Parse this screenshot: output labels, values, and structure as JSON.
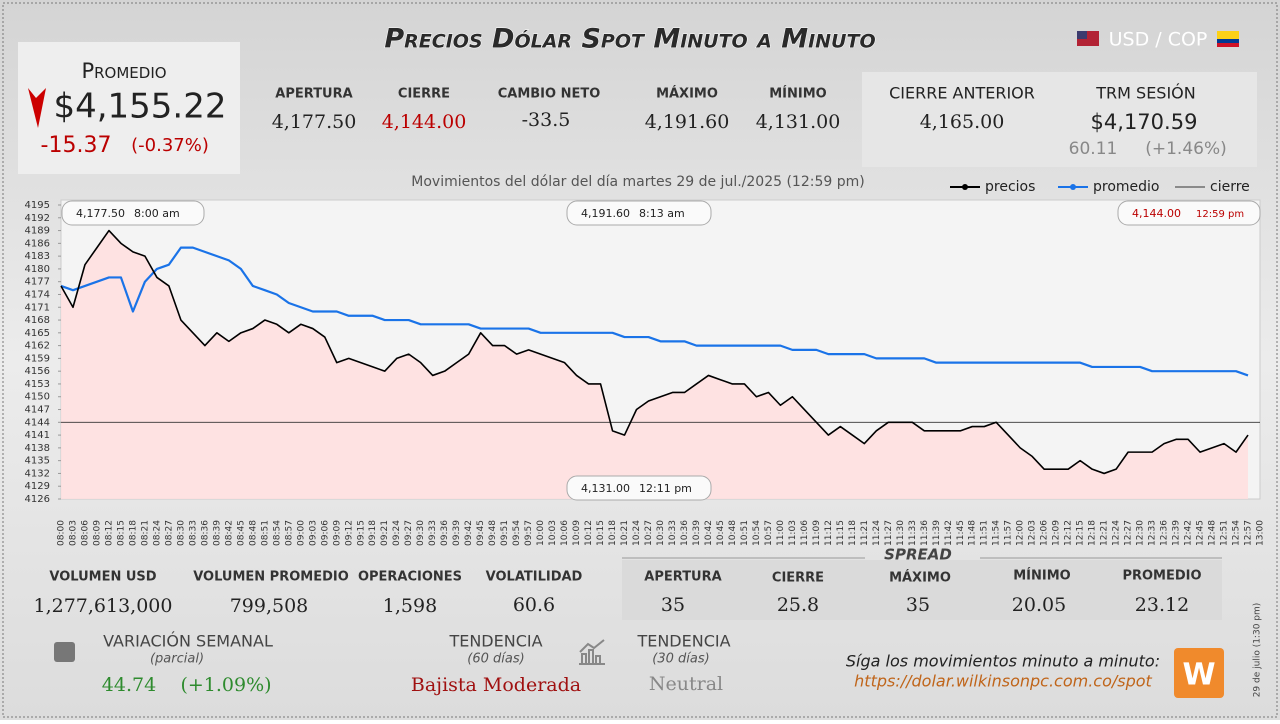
{
  "header": {
    "title": "Precios Dólar Spot Minuto a Minuto",
    "pair": "USD / COP"
  },
  "average": {
    "label": "Promedio",
    "value": "$4,155.22",
    "change": "-15.37",
    "change_pct": "(-0.37%)"
  },
  "session": [
    {
      "label": "APERTURA",
      "value": "4,177.50"
    },
    {
      "label": "CIERRE",
      "value": "4,144.00"
    },
    {
      "label": "CAMBIO NETO",
      "value": "-33.5"
    },
    {
      "label": "MÁXIMO",
      "value": "4,191.60"
    },
    {
      "label": "MÍNIMO",
      "value": "4,131.00"
    }
  ],
  "previous": {
    "label": "CIERRE ANTERIOR",
    "value": "4,165.00"
  },
  "trm": {
    "label": "TRM SESIÓN",
    "value": "$4,170.59",
    "change": "60.11",
    "change_pct": "(+1.46%)"
  },
  "chart_data": {
    "type": "line",
    "subtitle": "Movimientos del dólar del día martes 29 de jul./2025 (12:59 pm)",
    "categories": [
      "08:00",
      "08:03",
      "08:06",
      "08:09",
      "08:12",
      "08:15",
      "08:18",
      "08:21",
      "08:24",
      "08:27",
      "08:30",
      "08:33",
      "08:36",
      "08:39",
      "08:42",
      "08:45",
      "08:48",
      "08:51",
      "08:54",
      "08:57",
      "09:00",
      "09:03",
      "09:06",
      "09:09",
      "09:12",
      "09:15",
      "09:18",
      "09:21",
      "09:24",
      "09:27",
      "09:30",
      "09:33",
      "09:36",
      "09:39",
      "09:42",
      "09:45",
      "09:48",
      "09:51",
      "09:54",
      "09:57",
      "10:00",
      "10:03",
      "10:06",
      "10:09",
      "10:12",
      "10:15",
      "10:18",
      "10:21",
      "10:24",
      "10:27",
      "10:30",
      "10:33",
      "10:36",
      "10:39",
      "10:42",
      "10:45",
      "10:48",
      "10:51",
      "10:54",
      "10:57",
      "11:00",
      "11:03",
      "11:06",
      "11:09",
      "11:12",
      "11:15",
      "11:18",
      "11:21",
      "11:24",
      "11:27",
      "11:30",
      "11:33",
      "11:36",
      "11:39",
      "11:42",
      "11:45",
      "11:48",
      "11:51",
      "11:54",
      "11:57",
      "12:00",
      "12:03",
      "12:06",
      "12:09",
      "12:12",
      "12:15",
      "12:18",
      "12:21",
      "12:24",
      "12:27",
      "12:30",
      "12:33",
      "12:36",
      "12:39",
      "12:42",
      "12:45",
      "12:48",
      "12:51",
      "12:54",
      "12:57",
      "13:00"
    ],
    "series": [
      {
        "name": "precios",
        "color": "#000000",
        "values": [
          4176,
          4171,
          4181,
          4185,
          4189,
          4186,
          4184,
          4183,
          4178,
          4176,
          4168,
          4165,
          4162,
          4165,
          4163,
          4165,
          4166,
          4168,
          4167,
          4165,
          4167,
          4166,
          4164,
          4158,
          4159,
          4158,
          4157,
          4156,
          4159,
          4160,
          4158,
          4155,
          4156,
          4158,
          4160,
          4165,
          4162,
          4162,
          4160,
          4161,
          4160,
          4159,
          4158,
          4155,
          4153,
          4153,
          4142,
          4141,
          4147,
          4149,
          4150,
          4151,
          4151,
          4153,
          4155,
          4154,
          4153,
          4153,
          4150,
          4151,
          4148,
          4150,
          4147,
          4144,
          4141,
          4143,
          4141,
          4139,
          4142,
          4144,
          4144,
          4144,
          4142,
          4142,
          4142,
          4142,
          4143,
          4143,
          4144,
          4141,
          4138,
          4136,
          4133,
          4133,
          4133,
          4135,
          4133,
          4132,
          4133,
          4137,
          4137,
          4137,
          4139,
          4140,
          4140,
          4137,
          4138,
          4139,
          4137,
          4141,
          null
        ]
      },
      {
        "name": "promedio",
        "color": "#1a73e8",
        "values": [
          4176,
          4175,
          4176,
          4177,
          4178,
          4178,
          4170,
          4177,
          4180,
          4181,
          4185,
          4185,
          4184,
          4183,
          4182,
          4180,
          4176,
          4175,
          4174,
          4172,
          4171,
          4170,
          4170,
          4170,
          4169,
          4169,
          4169,
          4168,
          4168,
          4168,
          4167,
          4167,
          4167,
          4167,
          4167,
          4166,
          4166,
          4166,
          4166,
          4166,
          4165,
          4165,
          4165,
          4165,
          4165,
          4165,
          4165,
          4164,
          4164,
          4164,
          4163,
          4163,
          4163,
          4162,
          4162,
          4162,
          4162,
          4162,
          4162,
          4162,
          4162,
          4161,
          4161,
          4161,
          4160,
          4160,
          4160,
          4160,
          4159,
          4159,
          4159,
          4159,
          4159,
          4158,
          4158,
          4158,
          4158,
          4158,
          4158,
          4158,
          4158,
          4158,
          4158,
          4158,
          4158,
          4158,
          4157,
          4157,
          4157,
          4157,
          4157,
          4156,
          4156,
          4156,
          4156,
          4156,
          4156,
          4156,
          4156,
          4155,
          null
        ]
      }
    ],
    "reference_line": {
      "name": "cierre",
      "color": "#333333",
      "value": 4144
    },
    "ylim": [
      4126,
      4195
    ],
    "yticks": [
      4126,
      4129,
      4132,
      4135,
      4138,
      4141,
      4144,
      4147,
      4150,
      4153,
      4156,
      4159,
      4162,
      4165,
      4168,
      4171,
      4174,
      4177,
      4180,
      4183,
      4186,
      4189,
      4192,
      4195
    ],
    "area_color": "#ffdede",
    "annotations": [
      {
        "price": "4,177.50",
        "time": "8:00 am"
      },
      {
        "price": "4,191.60",
        "time": "8:13 am"
      },
      {
        "price": "4,144.00",
        "time": "12:59 pm"
      },
      {
        "price": "4,131.00",
        "time": "12:11 pm"
      }
    ]
  },
  "volume": [
    {
      "label": "VOLUMEN USD",
      "value": "1,277,613,000"
    },
    {
      "label": "VOLUMEN PROMEDIO",
      "value": "799,508"
    },
    {
      "label": "OPERACIONES",
      "value": "1,598"
    },
    {
      "label": "VOLATILIDAD",
      "value": "60.6"
    }
  ],
  "spread": {
    "title": "SPREAD",
    "items": [
      {
        "label": "APERTURA",
        "value": "35"
      },
      {
        "label": "CIERRE",
        "value": "25.8"
      },
      {
        "label": "MÁXIMO",
        "value": "35"
      },
      {
        "label": "MÍNIMO",
        "value": "20.05"
      },
      {
        "label": "PROMEDIO",
        "value": "23.12"
      }
    ]
  },
  "weekly": {
    "label": "VARIACIÓN SEMANAL",
    "note": "(parcial)",
    "value": "44.74",
    "pct": "(+1.09%)"
  },
  "trend_60": {
    "label": "TENDENCIA",
    "note": "(60 días)",
    "value": "Bajista Moderada"
  },
  "trend_30": {
    "label": "TENDENCIA",
    "note": "(30 días)",
    "value": "Neutral"
  },
  "footer": {
    "text": "Síga los movimientos minuto a minuto:",
    "url": "https://dolar.wilkinsonpc.com.co/spot",
    "side": "29 de julio (1:30 pm)",
    "logo": "W"
  }
}
